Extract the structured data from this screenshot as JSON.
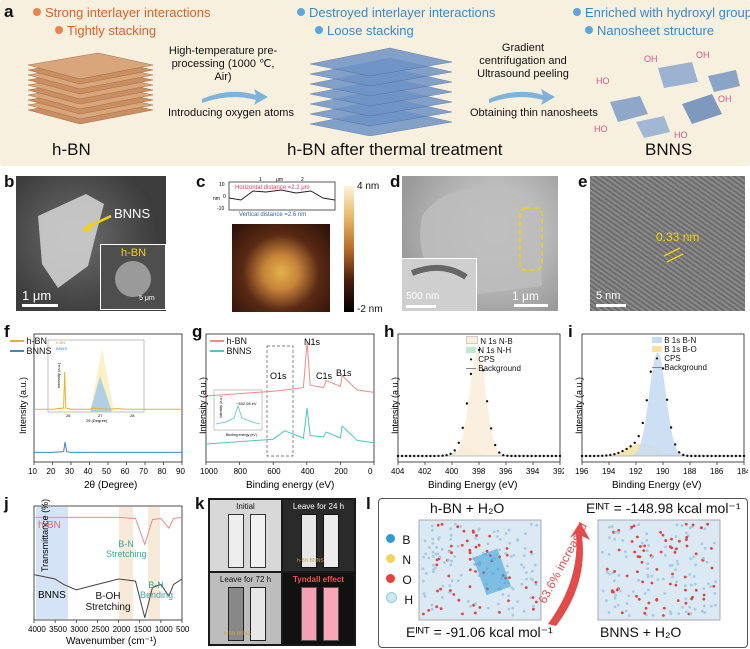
{
  "panel_labels": [
    "a",
    "b",
    "c",
    "d",
    "e",
    "f",
    "g",
    "h",
    "i",
    "j",
    "k",
    "l"
  ],
  "panel_a": {
    "hbn_props": [
      "Strong interlayer interactions",
      "Tightly stacking"
    ],
    "treated_props": [
      "Destroyed interlayer interactions",
      "Loose stacking"
    ],
    "bnns_props": [
      "Enriched with hydroxyl groups",
      "Nanosheet structure"
    ],
    "step1_label": "High-temperature pre-processing (1000 ℃, Air)",
    "step1_sub": "Introducing oxygen atoms",
    "step2_label": "Gradient centrifugation and Ultrasound peeling",
    "step2_sub": "Obtaining thin nanosheets",
    "titles": [
      "h-BN",
      "h-BN after thermal treatment",
      "BNNS"
    ],
    "oh_label": "OH",
    "ho_label": "HO"
  },
  "panel_b": {
    "arrow_label": "BNNS",
    "inset_label": "h-BN",
    "scale_main": "1 μm",
    "scale_inset": "5 μm"
  },
  "panel_c": {
    "profile_unit_x": "μm",
    "profile_unit_y": "nm",
    "horizontal": "Horizontal distance =2.2 μm",
    "vertical": "Vertical distance =2.6 nm",
    "cbar_top": "4 nm",
    "cbar_bottom": "-2 nm",
    "x_ticks": [
      "1",
      "2"
    ],
    "y_ticks": [
      "10",
      "0",
      "-10"
    ]
  },
  "panel_d": {
    "scale_main": "1 μm",
    "scale_inset": "500 nm"
  },
  "panel_e": {
    "spacing": "0.33 nm",
    "scale": "5 nm"
  },
  "panel_f": {
    "legend": [
      "h-BN",
      "BNNS"
    ],
    "xlabel": "2θ (Degree)",
    "ylabel": "Intensity (a.u.)",
    "x_ticks": [
      "10",
      "20",
      "30",
      "40",
      "50",
      "60",
      "70",
      "80",
      "90"
    ],
    "inset_xlabel": "2θ (Degree)",
    "inset_ylabel": "Intensity (a.u.)",
    "inset_ticks": [
      "26",
      "27",
      "28"
    ]
  },
  "panel_g": {
    "legend": [
      "h-BN",
      "BNNS"
    ],
    "xlabel": "Binding energy (eV)",
    "ylabel": "Intensity (a.u.)",
    "x_ticks": [
      "1000",
      "800",
      "600",
      "400",
      "200",
      "0"
    ],
    "peaks": [
      "N1s",
      "O1s",
      "C1s",
      "B1s"
    ],
    "inset_note": "~532.08 eV",
    "inset_xlabel": "Binding energy (eV)",
    "inset_ylabel": "Intensity (a.u.)"
  },
  "panel_h": {
    "legend": [
      "N 1s N-B",
      "N 1s N-H",
      "CPS",
      "Background"
    ],
    "xlabel": "Binding Energy (eV)",
    "ylabel": "Intensity (a.u.)",
    "x_ticks": [
      "404",
      "402",
      "400",
      "398",
      "396",
      "394",
      "392"
    ]
  },
  "panel_i": {
    "legend": [
      "B 1s B-N",
      "B 1s B-O",
      "CPS",
      "Background"
    ],
    "xlabel": "Binding Energy (eV)",
    "ylabel": "Intensity (a.u.)",
    "x_ticks": [
      "196",
      "194",
      "192",
      "190",
      "188",
      "186",
      "184"
    ]
  },
  "panel_j": {
    "series": [
      "h-BN",
      "BNNS"
    ],
    "annotations": [
      "B-N Stretching",
      "B-OH Stretching",
      "B-N Bending"
    ],
    "xlabel": "Wavenumber (cm⁻¹)",
    "ylabel": "Transmittance (%)",
    "x_ticks": [
      "4000",
      "3500",
      "3000",
      "2500",
      "2000",
      "1500",
      "1000",
      "500"
    ]
  },
  "panel_k": {
    "captions": [
      "Initial",
      "Leave for 24 h",
      "Leave for 72 h",
      "Tyndall effect"
    ],
    "vial_text": "h-BN  BNNS"
  },
  "panel_l": {
    "left_title": "h-BN + H₂O",
    "right_title": "BNNS + H₂O",
    "e_left": "Eᴵᴺᵀ = -91.06 kcal mol⁻¹",
    "e_right": "Eᴵᴺᵀ = -148.98 kcal mol⁻¹",
    "increase": "63.6% increased",
    "atoms": [
      "B",
      "N",
      "O",
      "H"
    ]
  },
  "colors": {
    "orange": "#d9622b",
    "blue": "#3a88c8",
    "hbn_red": "#f08a8a",
    "bnns_teal": "#4fc7c0",
    "panel_a_bg": "#f7f0df",
    "atom_b": "#2f9bd6",
    "atom_n": "#f2d35b",
    "atom_o": "#e8403a",
    "atom_h": "#cbe8f5"
  },
  "chart_data": [
    {
      "id": "f",
      "type": "line",
      "title": "",
      "xlabel": "2θ (Degree)",
      "ylabel": "Intensity (a.u.)",
      "xlim": [
        10,
        90
      ],
      "series": [
        {
          "name": "h-BN",
          "x": [
            10,
            20,
            26,
            26.6,
            27.2,
            30,
            40,
            42,
            50,
            55,
            60,
            70,
            80,
            90
          ],
          "y": [
            0.38,
            0.38,
            0.4,
            1.0,
            0.4,
            0.38,
            0.38,
            0.4,
            0.38,
            0.39,
            0.38,
            0.38,
            0.38,
            0.38
          ]
        },
        {
          "name": "BNNS",
          "x": [
            10,
            20,
            26,
            26.8,
            27.6,
            30,
            40,
            50,
            60,
            70,
            80,
            90
          ],
          "y": [
            0.04,
            0.04,
            0.06,
            0.3,
            0.06,
            0.04,
            0.04,
            0.04,
            0.04,
            0.04,
            0.04,
            0.04
          ]
        }
      ]
    },
    {
      "id": "g",
      "type": "line",
      "xlabel": "Binding energy (eV)",
      "ylabel": "Intensity (a.u.)",
      "xlim": [
        1000,
        0
      ],
      "series": [
        {
          "name": "h-BN",
          "x": [
            1000,
            800,
            600,
            532,
            420,
            398,
            380,
            300,
            285,
            200,
            190,
            100,
            0
          ],
          "y": [
            0.55,
            0.57,
            0.59,
            0.6,
            0.62,
            1.0,
            0.64,
            0.62,
            0.68,
            0.63,
            0.72,
            0.6,
            0.58
          ]
        },
        {
          "name": "BNNS",
          "x": [
            1000,
            800,
            600,
            532,
            420,
            398,
            380,
            300,
            285,
            200,
            190,
            100,
            0
          ],
          "y": [
            0.15,
            0.17,
            0.19,
            0.26,
            0.2,
            0.45,
            0.22,
            0.21,
            0.25,
            0.2,
            0.3,
            0.18,
            0.16
          ]
        }
      ]
    },
    {
      "id": "h",
      "type": "area",
      "xlabel": "Binding Energy (eV)",
      "ylabel": "Intensity (a.u.)",
      "xlim": [
        404,
        392
      ],
      "series": [
        {
          "name": "N 1s N-B",
          "center": 398.1,
          "width": 0.9,
          "height": 1.0
        },
        {
          "name": "N 1s N-H",
          "center": 398.9,
          "width": 1.0,
          "height": 0.08
        }
      ]
    },
    {
      "id": "i",
      "type": "area",
      "xlabel": "Binding Energy (eV)",
      "ylabel": "Intensity (a.u.)",
      "xlim": [
        196,
        184
      ],
      "series": [
        {
          "name": "B 1s B-N",
          "center": 190.4,
          "width": 0.9,
          "height": 1.0
        },
        {
          "name": "B 1s B-O",
          "center": 191.6,
          "width": 1.5,
          "height": 0.12
        }
      ]
    },
    {
      "id": "j",
      "type": "line",
      "xlabel": "Wavenumber (cm⁻¹)",
      "ylabel": "Transmittance (%)",
      "xlim": [
        4000,
        500
      ],
      "series": [
        {
          "name": "h-BN",
          "x": [
            4000,
            3500,
            3000,
            2500,
            2000,
            1600,
            1380,
            1200,
            1000,
            810,
            700,
            500
          ],
          "y": [
            0.95,
            0.95,
            0.95,
            0.95,
            0.95,
            0.94,
            0.7,
            0.93,
            0.94,
            0.85,
            0.94,
            0.95
          ]
        },
        {
          "name": "BNNS",
          "x": [
            4000,
            3500,
            3300,
            3000,
            2500,
            2000,
            1600,
            1380,
            1200,
            1000,
            810,
            700,
            500
          ],
          "y": [
            0.42,
            0.38,
            0.33,
            0.28,
            0.33,
            0.38,
            0.36,
            0.02,
            0.3,
            0.33,
            0.22,
            0.33,
            0.38
          ]
        }
      ]
    }
  ]
}
